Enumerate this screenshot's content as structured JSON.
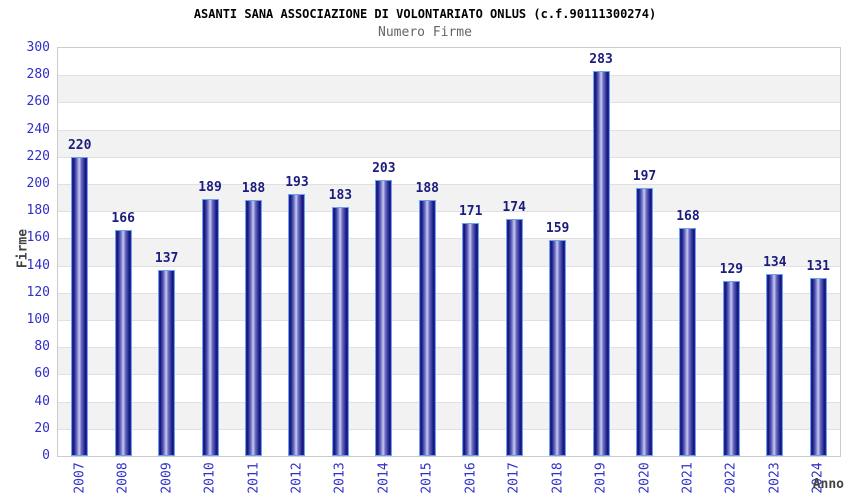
{
  "chart_data": {
    "type": "bar",
    "title": "ASANTI SANA ASSOCIAZIONE DI VOLONTARIATO ONLUS (c.f.90111300274)",
    "subtitle": "Numero Firme",
    "xlabel": "Anno",
    "ylabel": "Firme",
    "categories": [
      "2007",
      "2008",
      "2009",
      "2010",
      "2011",
      "2012",
      "2013",
      "2014",
      "2015",
      "2016",
      "2017",
      "2018",
      "2019",
      "2020",
      "2021",
      "2022",
      "2023",
      "2024"
    ],
    "values": [
      220,
      166,
      137,
      189,
      188,
      193,
      183,
      203,
      188,
      171,
      174,
      159,
      283,
      197,
      168,
      129,
      134,
      131
    ],
    "ylim": [
      0,
      300
    ],
    "ytick_step": 20,
    "grid": true,
    "legend_position": "none",
    "colors": {
      "bar_edge": "#2a2aa0",
      "bar_dark": "#14147a",
      "bar_mid": "#6a6ec4",
      "bar_light": "#c6caee",
      "bar_outline": "#6aa2f0",
      "tick_label": "#3030c8",
      "value_label": "#1c1c7e",
      "band_alt": "#f2f2f2",
      "band_main": "#ffffff",
      "grid_line": "#e0e0e0",
      "plot_border": "#cccccc",
      "title_color": "#000000",
      "subtitle_color": "#666666",
      "axis_title_color": "#444444"
    }
  }
}
